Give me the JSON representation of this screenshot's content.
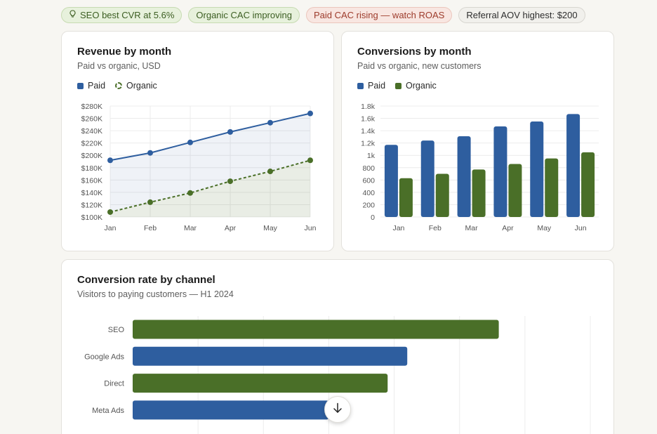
{
  "pills": [
    {
      "icon": "lightbulb-icon",
      "label": "SEO best CVR at 5.6%",
      "tone": "green"
    },
    {
      "label": "Organic CAC improving",
      "tone": "green"
    },
    {
      "label": "Paid CAC rising — watch ROAS",
      "tone": "red"
    },
    {
      "label": "Referral AOV highest: $200",
      "tone": "neutral"
    }
  ],
  "colors": {
    "paid": "#2e5e9f",
    "organic": "#4a6f28",
    "grid": "#ececec",
    "axis_text": "#555555"
  },
  "revenue": {
    "title": "Revenue by month",
    "subtitle": "Paid vs organic, USD",
    "legend": {
      "paid": "Paid",
      "organic": "Organic"
    }
  },
  "conversions": {
    "title": "Conversions by month",
    "subtitle": "Paid vs organic, new customers",
    "legend": {
      "paid": "Paid",
      "organic": "Organic"
    }
  },
  "rate": {
    "title": "Conversion rate by channel",
    "subtitle": "Visitors to paying customers — H1 2024"
  },
  "scroll_button": {
    "icon": "arrow-down-icon"
  },
  "chart_data": [
    {
      "type": "line",
      "categories": [
        "Jan",
        "Feb",
        "Mar",
        "Apr",
        "May",
        "Jun"
      ],
      "series": [
        {
          "name": "Paid",
          "values": [
            192000,
            204000,
            221000,
            238000,
            253000,
            268000
          ]
        },
        {
          "name": "Organic",
          "values": [
            108000,
            124000,
            139000,
            158000,
            174000,
            192000
          ]
        }
      ],
      "ylim": [
        100000,
        280000
      ],
      "yticks": [
        "$100K",
        "$120K",
        "$140K",
        "$160K",
        "$180K",
        "$200K",
        "$220K",
        "$240K",
        "$260K",
        "$280K"
      ],
      "area_fill": true,
      "legend_position": "top-left",
      "grid": true
    },
    {
      "type": "bar",
      "categories": [
        "Jan",
        "Feb",
        "Mar",
        "Apr",
        "May",
        "Jun"
      ],
      "series": [
        {
          "name": "Paid",
          "values": [
            1170,
            1240,
            1310,
            1470,
            1550,
            1670
          ]
        },
        {
          "name": "Organic",
          "values": [
            630,
            700,
            770,
            860,
            950,
            1050
          ]
        }
      ],
      "ylim": [
        0,
        1800
      ],
      "yticks": [
        "0",
        "200",
        "400",
        "600",
        "800",
        "1k",
        "1.2k",
        "1.4k",
        "1.6k",
        "1.8k"
      ],
      "legend_position": "top-left",
      "grid": true
    },
    {
      "type": "bar",
      "orientation": "horizontal",
      "categories": [
        "SEO",
        "Google Ads",
        "Direct",
        "Meta Ads"
      ],
      "values": [
        5.6,
        4.2,
        3.9,
        3.0
      ],
      "groups": [
        "organic",
        "paid",
        "organic",
        "paid"
      ],
      "xlim": [
        0,
        7
      ],
      "grid": true
    }
  ]
}
